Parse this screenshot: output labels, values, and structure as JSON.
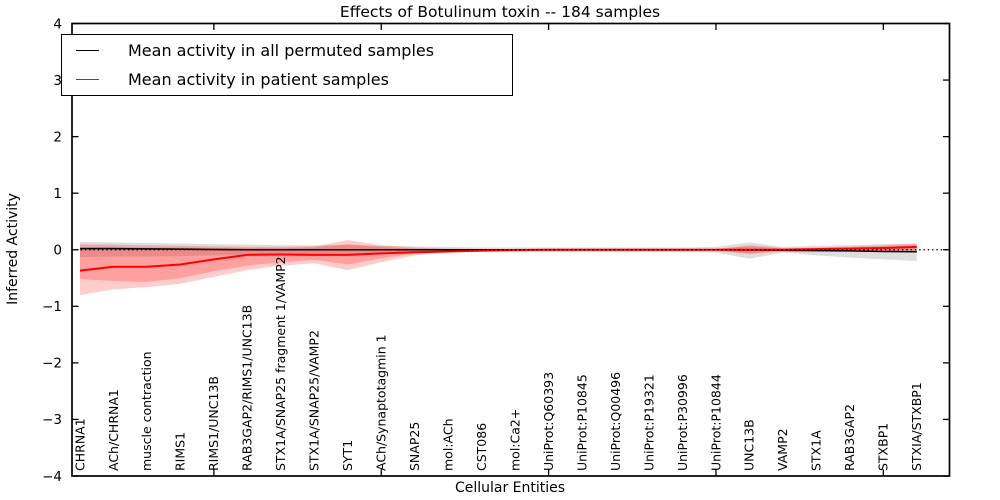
{
  "figure": {
    "title": "Effects of Botulinum toxin -- 184 samples",
    "xlabel": "Cellular Entities",
    "ylabel": "Inferred Activity"
  },
  "legend": {
    "entries": [
      {
        "label": "Mean activity in all permuted samples",
        "color": "#000000"
      },
      {
        "label": "Mean activity in patient samples",
        "color": "#ff0000"
      }
    ]
  },
  "chart_data": {
    "type": "line",
    "title": "Effects of Botulinum toxin -- 184 samples",
    "xlabel": "Cellular Entities",
    "ylabel": "Inferred Activity",
    "ylim": [
      -4,
      4
    ],
    "yticks": [
      4,
      3,
      2,
      1,
      0,
      -1,
      -2,
      -3,
      -4
    ],
    "x_major_tick_indices": [
      4,
      9,
      14,
      19,
      24
    ],
    "grid": false,
    "legend_position": "upper left",
    "zero_line": {
      "value": 0,
      "style": "dotted",
      "color": "#000000"
    },
    "categories": [
      "CHRNA1",
      "ACh/CHRNA1",
      "muscle contraction",
      "RIMS1",
      "RIMS1/UNC13B",
      "RAB3GAP2/RIMS1/UNC13B",
      "STX1A/SNAP25 fragment 1/VAMP2",
      "STX1A/SNAP25/VAMP2",
      "SYT1",
      "ACh/Synaptotagmin 1",
      "SNAP25",
      "mol:ACh",
      "CST086",
      "mol:Ca2+",
      "UniProt:Q60393",
      "UniProt:P10845",
      "UniProt:Q00496",
      "UniProt:P19321",
      "UniProt:P30996",
      "UniProt:P10844",
      "UNC13B",
      "VAMP2",
      "STX1A",
      "RAB3GAP2",
      "STXBP1",
      "STXIA/STXBP1"
    ],
    "series": [
      {
        "id": "permuted-mean",
        "name": "Mean activity in all permuted samples",
        "color": "#000000",
        "width": 1.5,
        "values": [
          0.02,
          0.02,
          0.015,
          0.01,
          0.005,
          0,
          0,
          0,
          0,
          0,
          0,
          0,
          0,
          0,
          0,
          0,
          0,
          0,
          0,
          0,
          -0.005,
          -0.01,
          -0.015,
          -0.02,
          -0.03,
          -0.035
        ]
      },
      {
        "id": "patient-mean",
        "name": "Mean activity in patient samples",
        "color": "#ff0000",
        "width": 2,
        "values": [
          -0.37,
          -0.3,
          -0.3,
          -0.26,
          -0.17,
          -0.09,
          -0.085,
          -0.09,
          -0.09,
          -0.065,
          -0.045,
          -0.03,
          -0.015,
          -0.005,
          0,
          0,
          0,
          0,
          0,
          0,
          0,
          0,
          0.01,
          0.02,
          0.03,
          0.05
        ]
      }
    ],
    "bands": [
      {
        "id": "permuted-std-band",
        "color": "#000000",
        "opacity": 0.13,
        "low": [
          -0.13,
          -0.12,
          -0.12,
          -0.11,
          -0.1,
          -0.09,
          -0.08,
          -0.08,
          -0.08,
          -0.07,
          -0.06,
          -0.05,
          -0.04,
          -0.04,
          -0.04,
          -0.04,
          -0.04,
          -0.04,
          -0.04,
          -0.05,
          -0.16,
          -0.05,
          -0.1,
          -0.14,
          -0.17,
          -0.2
        ],
        "high": [
          0.14,
          0.13,
          0.12,
          0.11,
          0.1,
          0.09,
          0.08,
          0.08,
          0.08,
          0.07,
          0.06,
          0.05,
          0.04,
          0.04,
          0.04,
          0.04,
          0.04,
          0.04,
          0.04,
          0.05,
          0.13,
          0.05,
          0.07,
          0.08,
          0.1,
          0.11
        ]
      },
      {
        "id": "patient-std-band-outer",
        "color": "#ff0000",
        "opacity": 0.2,
        "low": [
          -0.8,
          -0.7,
          -0.66,
          -0.6,
          -0.48,
          -0.36,
          -0.28,
          -0.24,
          -0.36,
          -0.22,
          -0.1,
          -0.04,
          -0.02,
          -0.02,
          -0.02,
          -0.02,
          -0.02,
          -0.02,
          -0.02,
          -0.02,
          -0.08,
          -0.03,
          -0.03,
          -0.03,
          -0.02,
          -0.02
        ],
        "high": [
          0.1,
          0.09,
          0.08,
          0.07,
          0.06,
          0.05,
          0.05,
          0.06,
          0.17,
          0.08,
          0.04,
          0.02,
          0.015,
          0.015,
          0.015,
          0.015,
          0.015,
          0.015,
          0.015,
          0.015,
          0.08,
          0.03,
          0.04,
          0.06,
          0.08,
          0.11
        ]
      },
      {
        "id": "patient-std-band-inner",
        "color": "#ff0000",
        "opacity": 0.22,
        "low": [
          -0.52,
          -0.55,
          -0.57,
          -0.5,
          -0.38,
          -0.28,
          -0.22,
          -0.18,
          -0.26,
          -0.15,
          -0.07,
          -0.03,
          -0.015,
          -0.015,
          -0.015,
          -0.015,
          -0.015,
          -0.015,
          -0.015,
          -0.015,
          -0.06,
          -0.02,
          -0.02,
          -0.02,
          -0.015,
          -0.01
        ],
        "high": [
          0.05,
          0.05,
          0.04,
          0.04,
          0.03,
          0.03,
          0.03,
          0.04,
          0.1,
          0.05,
          0.02,
          0.015,
          0.01,
          0.01,
          0.01,
          0.01,
          0.01,
          0.01,
          0.01,
          0.01,
          0.06,
          0.02,
          0.03,
          0.04,
          0.06,
          0.08
        ]
      }
    ]
  }
}
